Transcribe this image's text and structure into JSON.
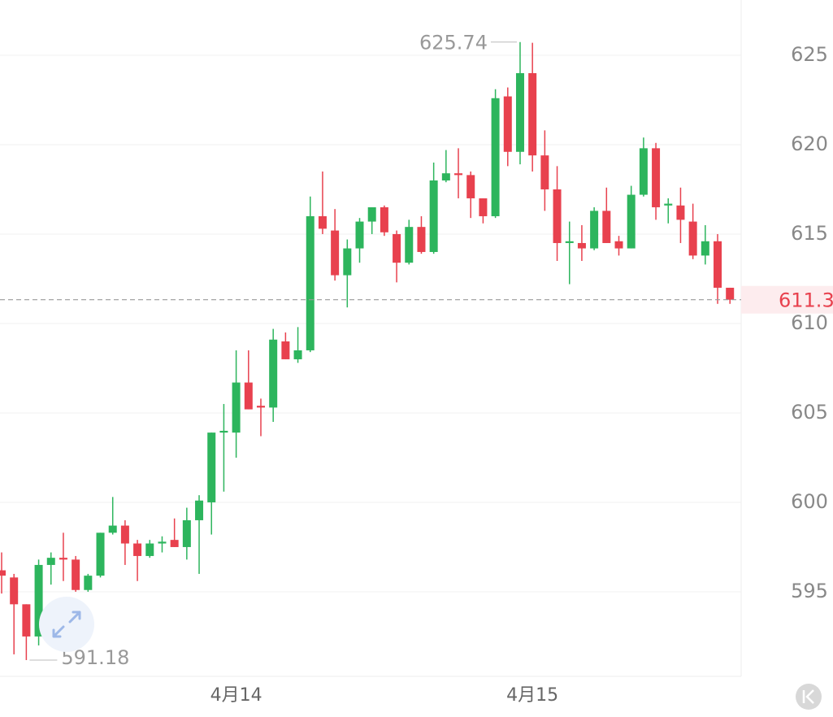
{
  "chart_data": {
    "type": "candlestick",
    "categories": [
      null,
      null,
      null,
      null,
      null,
      null,
      null,
      null,
      null,
      null,
      null,
      null,
      null,
      null,
      null,
      null,
      null,
      null,
      null,
      "4月14",
      null,
      null,
      null,
      null,
      null,
      null,
      null,
      null,
      null,
      null,
      null,
      null,
      null,
      null,
      null,
      null,
      null,
      null,
      null,
      null,
      null,
      null,
      null,
      "4月15",
      null,
      null,
      null,
      null,
      null,
      null,
      null,
      null,
      null,
      null,
      null,
      null,
      null,
      null,
      null,
      null
    ],
    "open": [
      596.2,
      595.8,
      594.3,
      592.5,
      596.5,
      596.9,
      596.8,
      595.1,
      595.9,
      598.3,
      598.7,
      597.7,
      597.0,
      597.7,
      597.9,
      597.5,
      599.0,
      600.0,
      603.9,
      603.9,
      606.7,
      605.4,
      605.3,
      609.0,
      608.0,
      608.5,
      616.0,
      615.2,
      612.7,
      614.2,
      615.7,
      616.5,
      615.0,
      613.4,
      615.4,
      614.0,
      618.0,
      618.4,
      618.3,
      617.0,
      616.0,
      622.7,
      619.6,
      624.0,
      619.4,
      617.5,
      614.5,
      614.5,
      614.2,
      616.3,
      614.6,
      614.2,
      617.2,
      619.8,
      616.6,
      616.6,
      615.7,
      613.8,
      614.6,
      612.0
    ],
    "high": [
      597.2,
      596.0,
      594.3,
      596.8,
      597.2,
      598.3,
      597.0,
      596.0,
      598.3,
      600.3,
      599.0,
      597.9,
      597.9,
      598.1,
      599.1,
      599.7,
      600.4,
      603.9,
      605.5,
      608.5,
      608.5,
      605.8,
      609.7,
      609.5,
      609.8,
      617.1,
      618.5,
      616.4,
      614.7,
      615.9,
      616.5,
      616.6,
      615.2,
      615.8,
      616.0,
      619.0,
      619.7,
      619.8,
      618.5,
      617.0,
      623.1,
      623.2,
      625.74,
      625.7,
      620.8,
      618.8,
      615.7,
      615.5,
      616.5,
      617.6,
      614.9,
      617.7,
      620.4,
      620.1,
      617.0,
      617.6,
      616.7,
      615.5,
      615.0,
      612.0
    ],
    "low": [
      594.9,
      591.5,
      591.18,
      592.0,
      595.4,
      595.6,
      595.0,
      595.0,
      595.8,
      598.2,
      596.5,
      595.6,
      596.9,
      597.2,
      597.5,
      596.8,
      596.0,
      598.2,
      600.6,
      602.5,
      605.2,
      603.7,
      604.5,
      608.0,
      607.8,
      608.4,
      615.0,
      612.4,
      610.9,
      613.4,
      615.0,
      614.9,
      612.3,
      613.3,
      613.9,
      613.9,
      617.9,
      617.0,
      615.9,
      615.6,
      615.9,
      618.8,
      618.9,
      618.5,
      616.3,
      613.5,
      612.2,
      613.5,
      614.1,
      614.5,
      613.8,
      614.2,
      617.1,
      615.8,
      615.6,
      614.5,
      613.6,
      613.3,
      611.1,
      611.1
    ],
    "close": [
      595.9,
      594.3,
      592.5,
      596.5,
      596.9,
      596.8,
      595.1,
      595.9,
      598.3,
      598.7,
      597.7,
      597.0,
      597.7,
      597.8,
      597.5,
      599.0,
      600.1,
      603.9,
      604.0,
      606.7,
      605.2,
      605.3,
      609.1,
      608.0,
      608.5,
      616.0,
      615.3,
      612.7,
      614.2,
      615.7,
      616.5,
      615.1,
      613.4,
      615.4,
      614.0,
      618.0,
      618.4,
      618.3,
      617.0,
      616.0,
      622.6,
      619.6,
      624.0,
      619.4,
      617.5,
      614.5,
      614.6,
      614.2,
      616.3,
      614.5,
      614.2,
      617.2,
      619.8,
      616.5,
      616.7,
      615.8,
      613.8,
      614.6,
      612.0,
      611.33
    ],
    "up_color": "#2db55d",
    "down_color": "#e8414e",
    "last_price_color": "#e8414e",
    "ylim": [
      590.27,
      628.09
    ],
    "yticks": [
      595,
      600,
      605,
      610,
      615,
      620,
      625
    ],
    "grid": true,
    "max_annotation_index": 42,
    "min_annotation_index": 2
  }
}
